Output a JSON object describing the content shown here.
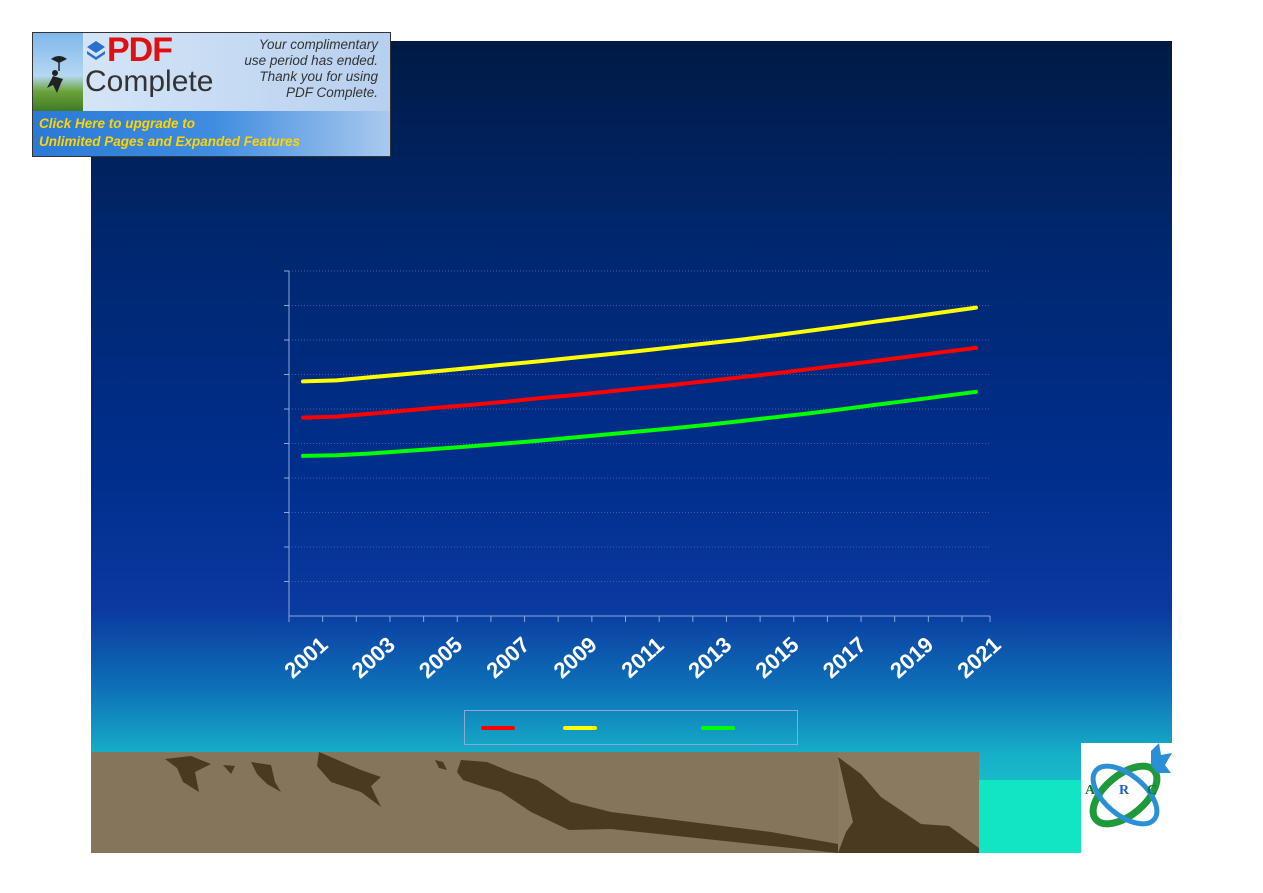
{
  "banner": {
    "logo_pdf": "PDF",
    "logo_complete": "Complete",
    "message": [
      "Your complimentary",
      "use period has ended.",
      "Thank you for using",
      "PDF Complete."
    ],
    "cta": [
      "Click Here to upgrade to",
      "Unlimited Pages and Expanded Features"
    ]
  },
  "logo": {
    "letters": [
      "A",
      "R",
      "C"
    ]
  },
  "chart_data": {
    "type": "line",
    "title": "",
    "xlabel": "",
    "ylabel": "",
    "x": [
      2001,
      2002,
      2003,
      2004,
      2005,
      2006,
      2007,
      2008,
      2009,
      2010,
      2011,
      2012,
      2013,
      2014,
      2015,
      2016,
      2017,
      2018,
      2019,
      2020,
      2021
    ],
    "xticks": [
      "2001",
      "2003",
      "2005",
      "2007",
      "2009",
      "2011",
      "2013",
      "2015",
      "2017",
      "2019",
      "2021"
    ],
    "ylim": [
      0,
      10
    ],
    "grid": true,
    "legend": "bottom",
    "series": [
      {
        "color": "#ff0000",
        "values": [
          5.75,
          5.78,
          5.86,
          5.95,
          6.04,
          6.12,
          6.21,
          6.31,
          6.4,
          6.5,
          6.6,
          6.7,
          6.81,
          6.92,
          7.03,
          7.15,
          7.27,
          7.39,
          7.52,
          7.65,
          7.77
        ]
      },
      {
        "color": "#ffff00",
        "values": [
          6.8,
          6.83,
          6.92,
          7.01,
          7.1,
          7.19,
          7.29,
          7.38,
          7.48,
          7.58,
          7.68,
          7.79,
          7.9,
          8.01,
          8.13,
          8.26,
          8.39,
          8.53,
          8.66,
          8.8,
          8.94
        ]
      },
      {
        "color": "#00ff00",
        "values": [
          4.64,
          4.66,
          4.71,
          4.78,
          4.85,
          4.92,
          5.0,
          5.08,
          5.17,
          5.26,
          5.35,
          5.44,
          5.54,
          5.65,
          5.76,
          5.87,
          5.99,
          6.12,
          6.24,
          6.37,
          6.5
        ]
      }
    ]
  }
}
